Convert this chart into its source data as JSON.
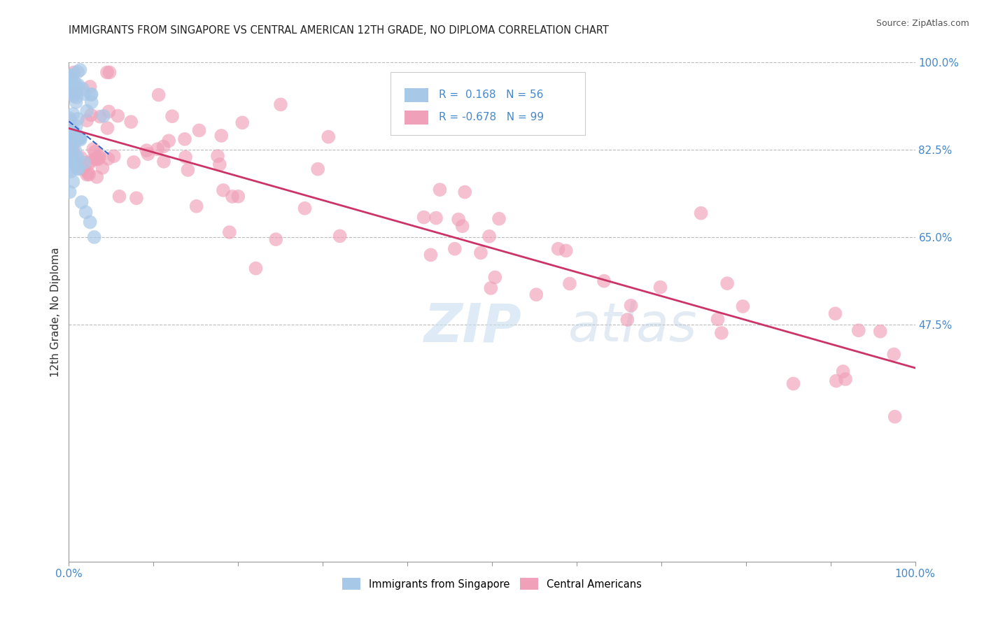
{
  "title": "IMMIGRANTS FROM SINGAPORE VS CENTRAL AMERICAN 12TH GRADE, NO DIPLOMA CORRELATION CHART",
  "source": "Source: ZipAtlas.com",
  "ylabel": "12th Grade, No Diploma",
  "r_singapore": 0.168,
  "n_singapore": 56,
  "r_central": -0.678,
  "n_central": 99,
  "watermark_zip": "ZIP",
  "watermark_atlas": "atlas",
  "color_singapore": "#a8c8e8",
  "color_central": "#f0a0b8",
  "line_color_singapore": "#3366cc",
  "line_color_central": "#cc3366",
  "background_color": "#ffffff",
  "title_color": "#222222",
  "tick_color": "#4488cc",
  "grid_color": "#bbbbbb",
  "ytick_positions": [
    0.475,
    0.65,
    0.825,
    1.0
  ],
  "ytick_labels": [
    "47.5%",
    "65.0%",
    "82.5%",
    "100.0%"
  ]
}
